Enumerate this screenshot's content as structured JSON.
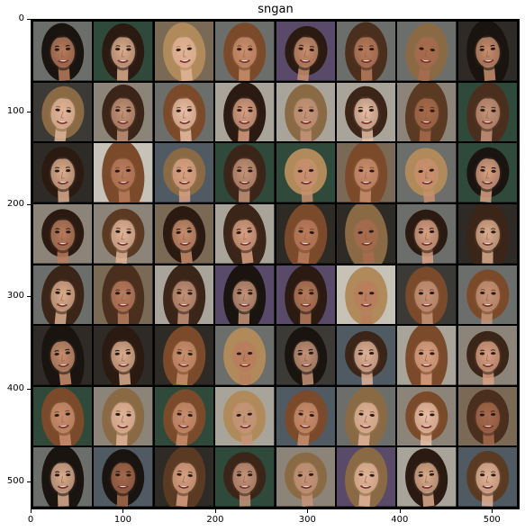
{
  "figure": {
    "title": "sngan",
    "grid": {
      "rows": 8,
      "cols": 8,
      "content": "generated face samples"
    },
    "x_axis": {
      "ticks": [
        "0",
        "100",
        "200",
        "300",
        "400",
        "500"
      ],
      "tick_values": [
        0,
        100,
        200,
        300,
        400,
        500
      ],
      "range": [
        0,
        530
      ]
    },
    "y_axis": {
      "ticks": [
        "0",
        "100",
        "200",
        "300",
        "400",
        "500"
      ],
      "tick_values": [
        0,
        100,
        200,
        300,
        400,
        500
      ],
      "range": [
        0,
        530
      ]
    }
  }
}
